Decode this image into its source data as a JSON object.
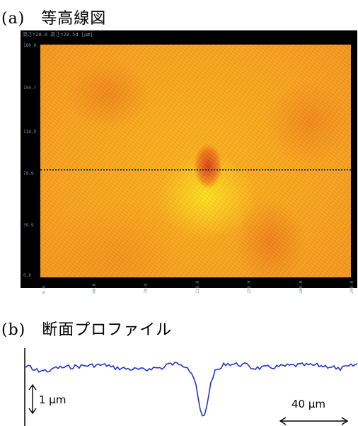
{
  "captions": {
    "a": "(a)　等高線図",
    "b": "(b)　断面プロファイル"
  },
  "map": {
    "header": "高さ=20.0 高さ=28.5d [μm]",
    "y_ticks": [
      "180.0",
      "150.7",
      "118.9",
      "79.9",
      "39.9",
      "0.0"
    ],
    "x_ticks": [
      "0.0",
      "40.0",
      "79.9",
      "119.9",
      "159.9",
      "200.0",
      "240.0"
    ],
    "colors": {
      "frame": "#000000",
      "surface": "#f8a21c",
      "pit": "#d8321a",
      "line": "#1a2b6b"
    }
  },
  "profile": {
    "vertical_scale_label": "1 μm",
    "horizontal_scale_label": "40 μm",
    "line_color": "#2233cc"
  }
}
